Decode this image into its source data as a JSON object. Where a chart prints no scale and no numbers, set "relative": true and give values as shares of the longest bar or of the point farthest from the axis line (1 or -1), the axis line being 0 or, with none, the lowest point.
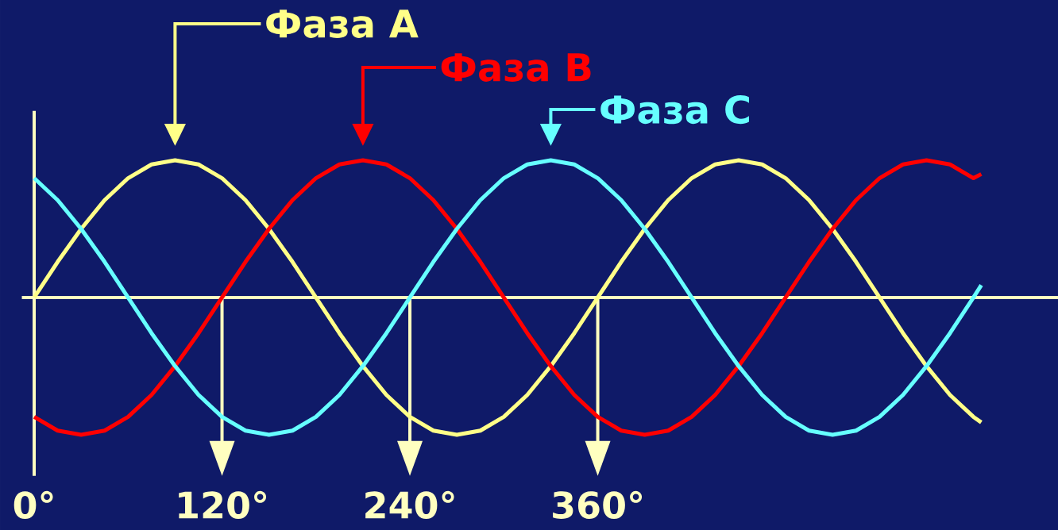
{
  "chart_data": {
    "type": "line",
    "relative": true,
    "legend": "top",
    "marker": "none",
    "line_style": "solid",
    "x": [
      0,
      15,
      30,
      45,
      60,
      75,
      90,
      105,
      120,
      135,
      150,
      165,
      180,
      195,
      210,
      225,
      240,
      255,
      270,
      285,
      300,
      315,
      330,
      345,
      360,
      375,
      390,
      405,
      420,
      435,
      450,
      465,
      480,
      495,
      510,
      525,
      540,
      555,
      570,
      585,
      600,
      605
    ],
    "xlim": [
      0,
      654
    ],
    "xticks": [
      {
        "value": 0,
        "label": "0°"
      },
      {
        "value": 120,
        "label": "120°"
      },
      {
        "value": 240,
        "label": "240°"
      },
      {
        "value": 360,
        "label": "360°"
      }
    ],
    "ref_lines": [
      {
        "axis": "y",
        "value": 0,
        "color": "#ffffc0"
      },
      {
        "axis": "x",
        "value": 120,
        "color": "#ffffc0"
      },
      {
        "axis": "x",
        "value": 240,
        "color": "#ffffc0"
      },
      {
        "axis": "x",
        "value": 360,
        "color": "#ffffc0"
      }
    ],
    "series": [
      {
        "name": "Фаза А",
        "color": "#ffff88",
        "values": [
          0,
          0.26,
          0.5,
          0.71,
          0.87,
          0.97,
          1,
          0.97,
          0.87,
          0.71,
          0.5,
          0.26,
          0,
          -0.26,
          -0.5,
          -0.71,
          -0.87,
          -0.97,
          -1,
          -0.97,
          -0.87,
          -0.71,
          -0.5,
          -0.26,
          0,
          0.26,
          0.5,
          0.71,
          0.87,
          0.97,
          1,
          0.97,
          0.87,
          0.71,
          0.5,
          0.26,
          0,
          -0.26,
          -0.5,
          -0.71,
          -0.87,
          -0.91
        ]
      },
      {
        "name": "Фаза В",
        "color": "#ff0000",
        "values": [
          -0.87,
          -0.97,
          -1,
          -0.97,
          -0.87,
          -0.71,
          -0.5,
          -0.26,
          0,
          0.26,
          0.5,
          0.71,
          0.87,
          0.97,
          1,
          0.97,
          0.87,
          0.71,
          0.5,
          0.26,
          0,
          -0.26,
          -0.5,
          -0.71,
          -0.87,
          -0.97,
          -1,
          -0.97,
          -0.87,
          -0.71,
          -0.5,
          -0.26,
          0,
          0.26,
          0.5,
          0.71,
          0.87,
          0.97,
          1,
          0.97,
          0.87,
          0.9
        ]
      },
      {
        "name": "Фаза С",
        "color": "#66ffff",
        "values": [
          0.87,
          0.71,
          0.5,
          0.26,
          0,
          -0.26,
          -0.5,
          -0.71,
          -0.87,
          -0.97,
          -1,
          -0.97,
          -0.87,
          -0.71,
          -0.5,
          -0.26,
          0,
          0.26,
          0.5,
          0.71,
          0.87,
          0.97,
          1,
          0.97,
          0.87,
          0.71,
          0.5,
          0.26,
          0,
          -0.26,
          -0.5,
          -0.71,
          -0.87,
          -0.97,
          -1,
          -0.97,
          -0.87,
          -0.71,
          -0.5,
          -0.26,
          0,
          0.09
        ]
      }
    ]
  }
}
